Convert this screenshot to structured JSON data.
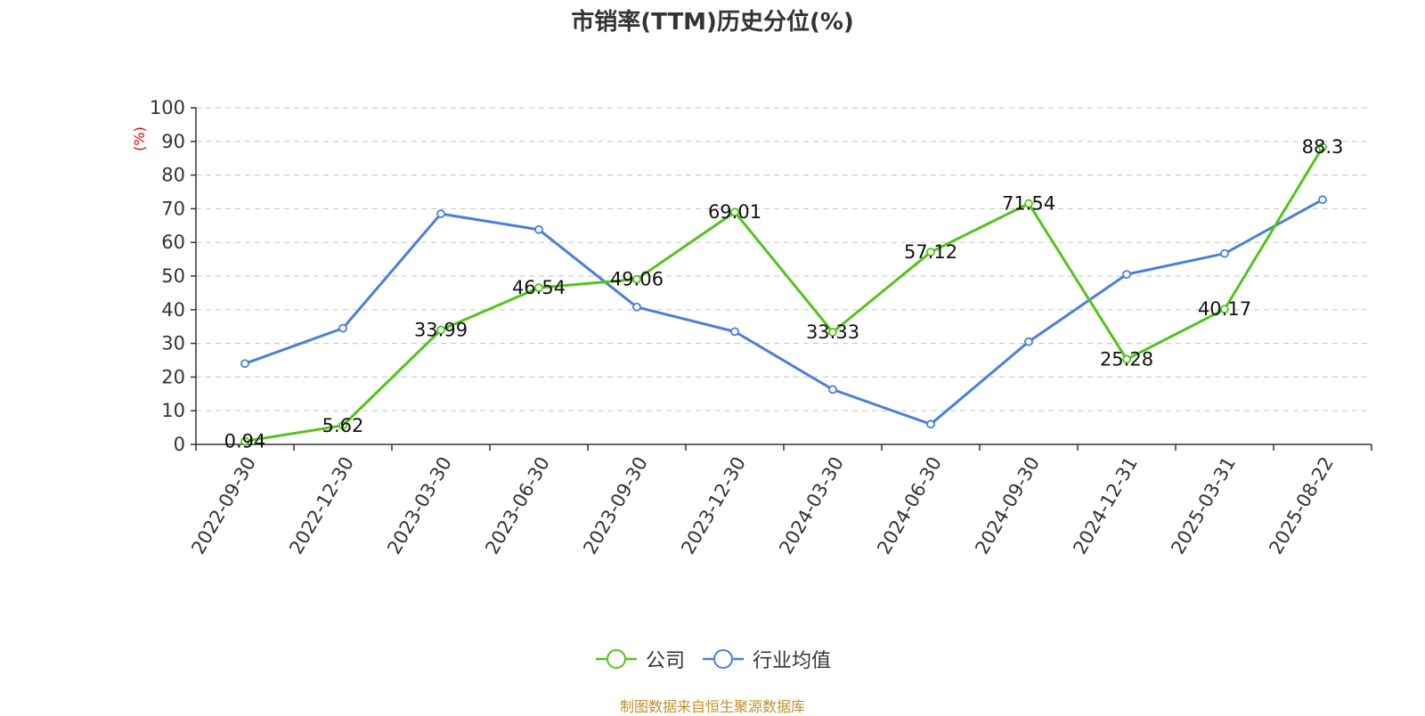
{
  "chart_data": {
    "type": "line",
    "title": "市销率(TTM)历史分位(%)",
    "ylabel": "(%)",
    "xlabel": "",
    "ylim": [
      0,
      100
    ],
    "yticks": [
      0,
      10,
      20,
      30,
      40,
      50,
      60,
      70,
      80,
      90,
      100
    ],
    "categories": [
      "2022-09-30",
      "2022-12-30",
      "2023-03-30",
      "2023-06-30",
      "2023-09-30",
      "2023-12-30",
      "2024-03-30",
      "2024-06-30",
      "2024-09-30",
      "2024-12-31",
      "2025-03-31",
      "2025-08-22"
    ],
    "series": [
      {
        "name": "公司",
        "color": "#52c41a",
        "show_labels": true,
        "values": [
          0.94,
          5.62,
          33.99,
          46.54,
          49.06,
          69.01,
          33.33,
          57.12,
          71.54,
          25.28,
          40.17,
          88.3
        ]
      },
      {
        "name": "行业均值",
        "color": "#4a7fdb",
        "show_labels": false,
        "values": [
          24.0,
          34.5,
          68.5,
          63.8,
          40.8,
          33.5,
          16.3,
          6.0,
          30.5,
          50.5,
          56.7,
          72.7
        ]
      }
    ],
    "grid": true,
    "legend_position": "bottom"
  },
  "footer": {
    "source": "制图数据来自恒生聚源数据库"
  },
  "colors": {
    "ylabel": "#e00000",
    "axis": "#333333",
    "grid": "#cccccc"
  }
}
